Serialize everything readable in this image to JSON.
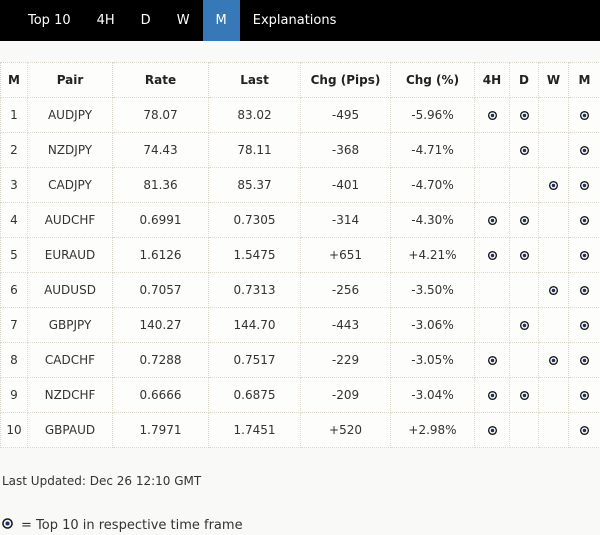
{
  "nav": {
    "items": [
      {
        "label": "Top 10",
        "active": false
      },
      {
        "label": "4H",
        "active": false
      },
      {
        "label": "D",
        "active": false
      },
      {
        "label": "W",
        "active": false
      },
      {
        "label": "M",
        "active": true
      },
      {
        "label": "Explanations",
        "active": false
      }
    ]
  },
  "table": {
    "headers": [
      "M",
      "Pair",
      "Rate",
      "Last",
      "Chg (Pips)",
      "Chg (%)",
      "4H",
      "D",
      "W",
      "M"
    ],
    "rows": [
      {
        "rank": "1",
        "pair": "AUDJPY",
        "rate": "78.07",
        "last": "83.02",
        "chg_pips": "-495",
        "chg_pct": "-5.96%",
        "tf": {
          "h4": true,
          "d": true,
          "w": false,
          "m": true
        }
      },
      {
        "rank": "2",
        "pair": "NZDJPY",
        "rate": "74.43",
        "last": "78.11",
        "chg_pips": "-368",
        "chg_pct": "-4.71%",
        "tf": {
          "h4": false,
          "d": true,
          "w": false,
          "m": true
        }
      },
      {
        "rank": "3",
        "pair": "CADJPY",
        "rate": "81.36",
        "last": "85.37",
        "chg_pips": "-401",
        "chg_pct": "-4.70%",
        "tf": {
          "h4": false,
          "d": false,
          "w": true,
          "m": true
        }
      },
      {
        "rank": "4",
        "pair": "AUDCHF",
        "rate": "0.6991",
        "last": "0.7305",
        "chg_pips": "-314",
        "chg_pct": "-4.30%",
        "tf": {
          "h4": true,
          "d": true,
          "w": false,
          "m": true
        }
      },
      {
        "rank": "5",
        "pair": "EURAUD",
        "rate": "1.6126",
        "last": "1.5475",
        "chg_pips": "+651",
        "chg_pct": "+4.21%",
        "tf": {
          "h4": true,
          "d": true,
          "w": false,
          "m": true
        }
      },
      {
        "rank": "6",
        "pair": "AUDUSD",
        "rate": "0.7057",
        "last": "0.7313",
        "chg_pips": "-256",
        "chg_pct": "-3.50%",
        "tf": {
          "h4": false,
          "d": false,
          "w": true,
          "m": true
        }
      },
      {
        "rank": "7",
        "pair": "GBPJPY",
        "rate": "140.27",
        "last": "144.70",
        "chg_pips": "-443",
        "chg_pct": "-3.06%",
        "tf": {
          "h4": false,
          "d": true,
          "w": false,
          "m": true
        }
      },
      {
        "rank": "8",
        "pair": "CADCHF",
        "rate": "0.7288",
        "last": "0.7517",
        "chg_pips": "-229",
        "chg_pct": "-3.05%",
        "tf": {
          "h4": true,
          "d": false,
          "w": true,
          "m": true
        }
      },
      {
        "rank": "9",
        "pair": "NZDCHF",
        "rate": "0.6666",
        "last": "0.6875",
        "chg_pips": "-209",
        "chg_pct": "-3.04%",
        "tf": {
          "h4": true,
          "d": true,
          "w": false,
          "m": true
        }
      },
      {
        "rank": "10",
        "pair": "GBPAUD",
        "rate": "1.7971",
        "last": "1.7451",
        "chg_pips": "+520",
        "chg_pct": "+2.98%",
        "tf": {
          "h4": true,
          "d": false,
          "w": false,
          "m": true
        }
      }
    ]
  },
  "footer": {
    "last_updated": "Last Updated: Dec 26 12:10 GMT",
    "legend": "= Top 10 in respective time frame"
  },
  "icons": {
    "timeframe_marker": "bullseye-icon"
  },
  "colors": {
    "accent": "#3779b8",
    "nav_bg": "#000000",
    "icon_ring": "#1a1a1a",
    "icon_dot": "#1c2e6b"
  }
}
